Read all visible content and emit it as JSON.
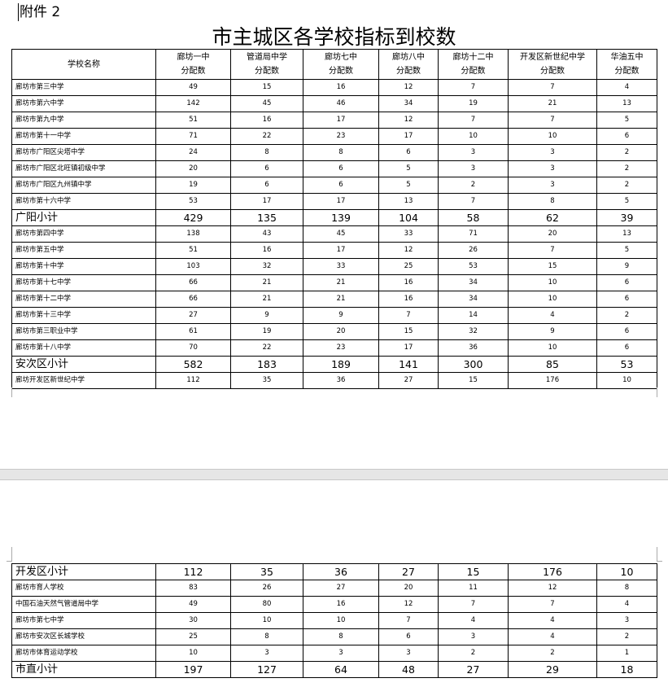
{
  "attachment_label": "附件 2",
  "title": "市主城区各学校指标到校数",
  "table": {
    "header": {
      "name_col": "学校名称",
      "columns": [
        "廊坊一中",
        "管道局中学",
        "廊坊七中",
        "廊坊八中",
        "廊坊十二中",
        "开发区新世纪中学",
        "华油五中"
      ],
      "sub_label": "分配数"
    },
    "page1_rows": [
      {
        "name": "廊坊市第三中学",
        "values": [
          "49",
          "15",
          "16",
          "12",
          "7",
          "7",
          "4"
        ]
      },
      {
        "name": "廊坊市第六中学",
        "values": [
          "142",
          "45",
          "46",
          "34",
          "19",
          "21",
          "13"
        ]
      },
      {
        "name": "廊坊市第九中学",
        "values": [
          "51",
          "16",
          "17",
          "12",
          "7",
          "7",
          "5"
        ]
      },
      {
        "name": "廊坊市第十一中学",
        "values": [
          "71",
          "22",
          "23",
          "17",
          "10",
          "10",
          "6"
        ]
      },
      {
        "name": "廊坊市广阳区尖塔中学",
        "values": [
          "24",
          "8",
          "8",
          "6",
          "3",
          "3",
          "2"
        ]
      },
      {
        "name": "廊坊市广阳区北旺镇初级中学",
        "values": [
          "20",
          "6",
          "6",
          "5",
          "3",
          "3",
          "2"
        ]
      },
      {
        "name": "廊坊市广阳区九州镇中学",
        "values": [
          "19",
          "6",
          "6",
          "5",
          "2",
          "3",
          "2"
        ]
      },
      {
        "name": "廊坊市第十六中学",
        "values": [
          "53",
          "17",
          "17",
          "13",
          "7",
          "8",
          "5"
        ]
      },
      {
        "name": "广阳小计",
        "values": [
          "429",
          "135",
          "139",
          "104",
          "58",
          "62",
          "39"
        ],
        "subtotal": true
      },
      {
        "name": "廊坊市第四中学",
        "values": [
          "138",
          "43",
          "45",
          "33",
          "71",
          "20",
          "13"
        ]
      },
      {
        "name": "廊坊市第五中学",
        "values": [
          "51",
          "16",
          "17",
          "12",
          "26",
          "7",
          "5"
        ]
      },
      {
        "name": "廊坊市第十中学",
        "values": [
          "103",
          "32",
          "33",
          "25",
          "53",
          "15",
          "9"
        ]
      },
      {
        "name": "廊坊市第十七中学",
        "values": [
          "66",
          "21",
          "21",
          "16",
          "34",
          "10",
          "6"
        ]
      },
      {
        "name": "廊坊市第十二中学",
        "values": [
          "66",
          "21",
          "21",
          "16",
          "34",
          "10",
          "6"
        ]
      },
      {
        "name": "廊坊市第十三中学",
        "values": [
          "27",
          "9",
          "9",
          "7",
          "14",
          "4",
          "2"
        ]
      },
      {
        "name": "廊坊市第三职业中学",
        "values": [
          "61",
          "19",
          "20",
          "15",
          "32",
          "9",
          "6"
        ]
      },
      {
        "name": "廊坊市第十八中学",
        "values": [
          "70",
          "22",
          "23",
          "17",
          "36",
          "10",
          "6"
        ]
      },
      {
        "name": "安次区小计",
        "values": [
          "582",
          "183",
          "189",
          "141",
          "300",
          "85",
          "53"
        ],
        "subtotal": true
      },
      {
        "name": "廊坊开发区新世纪中学",
        "values": [
          "112",
          "35",
          "36",
          "27",
          "15",
          "176",
          "10"
        ]
      }
    ],
    "page2_rows": [
      {
        "name": "开发区小计",
        "values": [
          "112",
          "35",
          "36",
          "27",
          "15",
          "176",
          "10"
        ],
        "subtotal": true
      },
      {
        "name": "廊坊市育人学校",
        "values": [
          "83",
          "26",
          "27",
          "20",
          "11",
          "12",
          "8"
        ]
      },
      {
        "name": "中国石油天然气管道局中学",
        "values": [
          "49",
          "80",
          "16",
          "12",
          "7",
          "7",
          "4"
        ]
      },
      {
        "name": "廊坊市第七中学",
        "values": [
          "30",
          "10",
          "10",
          "7",
          "4",
          "4",
          "3"
        ]
      },
      {
        "name": "廊坊市安次区长城学校",
        "values": [
          "25",
          "8",
          "8",
          "6",
          "3",
          "4",
          "2"
        ]
      },
      {
        "name": "廊坊市体育运动学校",
        "values": [
          "10",
          "3",
          "3",
          "3",
          "2",
          "2",
          "1"
        ]
      },
      {
        "name": "市直小计",
        "values": [
          "197",
          "127",
          "64",
          "48",
          "27",
          "29",
          "18"
        ],
        "subtotal": true
      }
    ]
  }
}
